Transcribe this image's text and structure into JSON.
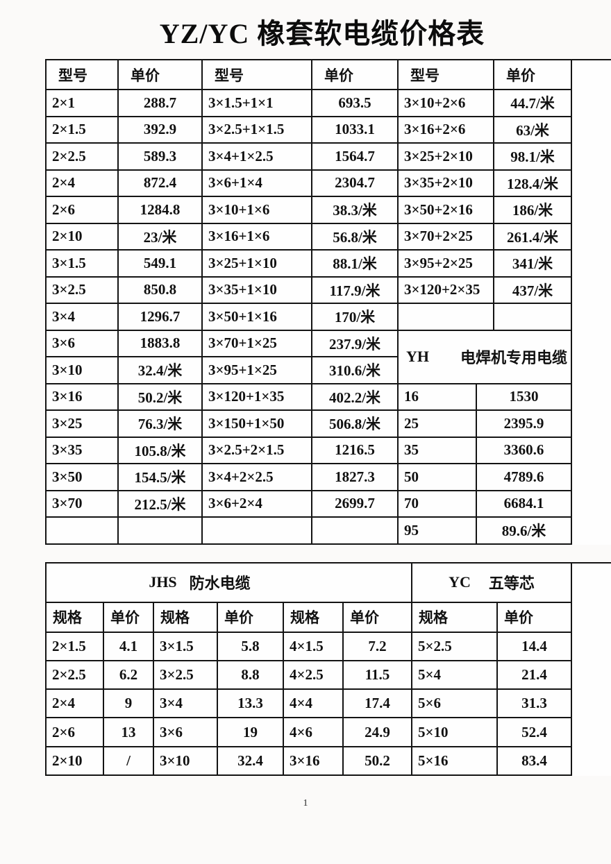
{
  "title": "YZ/YC 橡套软电缆价格表",
  "page_number": "1",
  "table1": {
    "headers": [
      "型号",
      "单价",
      "型号",
      "单价",
      "型号",
      "单价"
    ],
    "left": [
      {
        "model": "2×1",
        "price": "288.7"
      },
      {
        "model": "2×1.5",
        "price": "392.9"
      },
      {
        "model": "2×2.5",
        "price": "589.3"
      },
      {
        "model": "2×4",
        "price": "872.4"
      },
      {
        "model": "2×6",
        "price": "1284.8"
      },
      {
        "model": "2×10",
        "price": "23/米"
      },
      {
        "model": "3×1.5",
        "price": "549.1"
      },
      {
        "model": "3×2.5",
        "price": "850.8"
      },
      {
        "model": "3×4",
        "price": "1296.7"
      },
      {
        "model": "3×6",
        "price": "1883.8"
      },
      {
        "model": "3×10",
        "price": "32.4/米"
      },
      {
        "model": "3×16",
        "price": "50.2/米"
      },
      {
        "model": "3×25",
        "price": "76.3/米"
      },
      {
        "model": "3×35",
        "price": "105.8/米"
      },
      {
        "model": "3×50",
        "price": "154.5/米"
      },
      {
        "model": "3×70",
        "price": "212.5/米"
      },
      {
        "model": "",
        "price": ""
      }
    ],
    "middle": [
      {
        "model": "3×1.5+1×1",
        "price": "693.5"
      },
      {
        "model": "3×2.5+1×1.5",
        "price": "1033.1"
      },
      {
        "model": "3×4+1×2.5",
        "price": "1564.7"
      },
      {
        "model": "3×6+1×4",
        "price": "2304.7"
      },
      {
        "model": "3×10+1×6",
        "price": "38.3/米"
      },
      {
        "model": "3×16+1×6",
        "price": "56.8/米"
      },
      {
        "model": "3×25+1×10",
        "price": "88.1/米"
      },
      {
        "model": "3×35+1×10",
        "price": "117.9/米"
      },
      {
        "model": "3×50+1×16",
        "price": "170/米"
      },
      {
        "model": "3×70+1×25",
        "price": "237.9/米"
      },
      {
        "model": "3×95+1×25",
        "price": "310.6/米"
      },
      {
        "model": "3×120+1×35",
        "price": "402.2/米"
      },
      {
        "model": "3×150+1×50",
        "price": "506.8/米"
      },
      {
        "model": "3×2.5+2×1.5",
        "price": "1216.5"
      },
      {
        "model": "3×4+2×2.5",
        "price": "1827.3"
      },
      {
        "model": "3×6+2×4",
        "price": "2699.7"
      },
      {
        "model": "",
        "price": ""
      }
    ],
    "right": [
      {
        "model": "3×10+2×6",
        "price": "44.7/米"
      },
      {
        "model": "3×16+2×6",
        "price": "63/米"
      },
      {
        "model": "3×25+2×10",
        "price": "98.1/米"
      },
      {
        "model": "3×35+2×10",
        "price": "128.4/米"
      },
      {
        "model": "3×50+2×16",
        "price": "186/米"
      },
      {
        "model": "3×70+2×25",
        "price": "261.4/米"
      },
      {
        "model": "3×95+2×25",
        "price": "341/米"
      },
      {
        "model": "3×120+2×35",
        "price": "437/米"
      },
      {
        "model": "",
        "price": ""
      }
    ],
    "yh": {
      "code": "YH",
      "name": "电焊机专用电缆",
      "rows": [
        {
          "spec": "16",
          "price": "1530"
        },
        {
          "spec": "25",
          "price": "2395.9"
        },
        {
          "spec": "35",
          "price": "3360.6"
        },
        {
          "spec": "50",
          "price": "4789.6"
        },
        {
          "spec": "70",
          "price": "6684.1"
        },
        {
          "spec": "95",
          "price": "89.6/米"
        }
      ]
    }
  },
  "table2": {
    "jhs_code": "JHS",
    "jhs_name": "防水电缆",
    "yc_code": "YC",
    "yc_name": "五等芯",
    "headers": [
      "规格",
      "单价",
      "规格",
      "单价",
      "规格",
      "单价",
      "规格",
      "单价"
    ],
    "rows": [
      {
        "c1": "2×1.5",
        "p1": "4.1",
        "c2": "3×1.5",
        "p2": "5.8",
        "c3": "4×1.5",
        "p3": "7.2",
        "c4": "5×2.5",
        "p4": "14.4"
      },
      {
        "c1": "2×2.5",
        "p1": "6.2",
        "c2": "3×2.5",
        "p2": "8.8",
        "c3": "4×2.5",
        "p3": "11.5",
        "c4": "5×4",
        "p4": "21.4"
      },
      {
        "c1": "2×4",
        "p1": "9",
        "c2": "3×4",
        "p2": "13.3",
        "c3": "4×4",
        "p3": "17.4",
        "c4": "5×6",
        "p4": "31.3"
      },
      {
        "c1": "2×6",
        "p1": "13",
        "c2": "3×6",
        "p2": "19",
        "c3": "4×6",
        "p3": "24.9",
        "c4": "5×10",
        "p4": "52.4"
      },
      {
        "c1": "2×10",
        "p1": "/",
        "c2": "3×10",
        "p2": "32.4",
        "c3": "3×16",
        "p3": "50.2",
        "c4": "5×16",
        "p4": "83.4"
      }
    ]
  }
}
